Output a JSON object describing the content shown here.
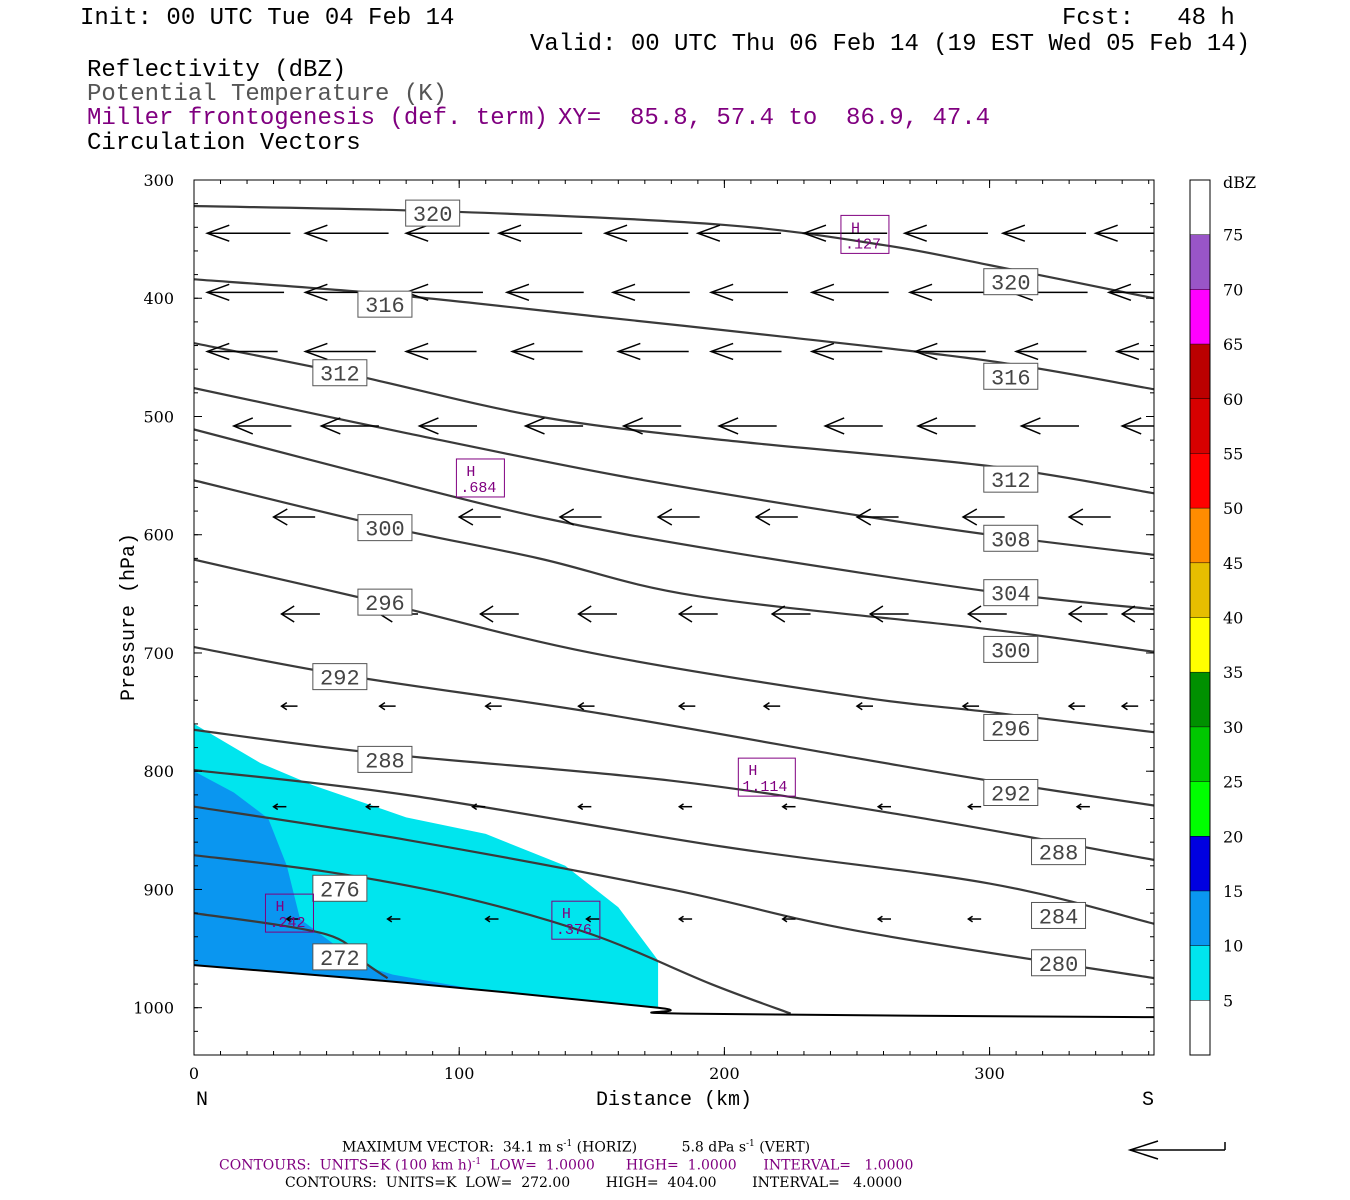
{
  "header": {
    "init": "Init: 00 UTC Tue 04 Feb 14",
    "fcst": "Fcst:   48 h",
    "valid": "Valid: 00 UTC Thu 06 Feb 14 (19 EST Wed 05 Feb 14)",
    "fields": [
      "Reflectivity (dBZ)",
      "Potential Temperature (K)",
      "Miller frontogenesis (def. term)",
      "Circulation Vectors"
    ],
    "xy": "XY=  85.8, 57.4 to  86.9, 47.4"
  },
  "colors": {
    "purple": "#800080",
    "contour": "#3a3a3a",
    "refl_5": "#00e5ee",
    "refl_10": "#0a96f0"
  },
  "chart_data": {
    "type": "cross-section",
    "xlabel": "Distance (km)",
    "ylabel": "Pressure (hPa)",
    "xlim": [
      0,
      362
    ],
    "ylim": [
      1040,
      300
    ],
    "xticks": [
      "0",
      "100",
      "200",
      "300"
    ],
    "yticks": [
      "300",
      "400",
      "500",
      "600",
      "700",
      "800",
      "900",
      "1000"
    ],
    "left_label": "N",
    "right_label": "S",
    "theta_contours": [
      {
        "label": "320",
        "pts": [
          [
            0,
            322
          ],
          [
            100,
            327
          ],
          [
            200,
            338
          ],
          [
            260,
            355
          ],
          [
            300,
            372
          ],
          [
            362,
            400
          ]
        ],
        "labels_at": [
          [
            90,
            328
          ],
          [
            308,
            386
          ]
        ]
      },
      {
        "label": "316",
        "pts": [
          [
            0,
            384
          ],
          [
            70,
            396
          ],
          [
            150,
            415
          ],
          [
            220,
            432
          ],
          [
            300,
            453
          ],
          [
            362,
            477
          ]
        ],
        "labels_at": [
          [
            72,
            405
          ],
          [
            308,
            466
          ]
        ]
      },
      {
        "label": "312",
        "pts": [
          [
            0,
            438
          ],
          [
            60,
            465
          ],
          [
            130,
            500
          ],
          [
            200,
            520
          ],
          [
            300,
            542
          ],
          [
            362,
            565
          ]
        ],
        "labels_at": [
          [
            55,
            463
          ],
          [
            308,
            553
          ]
        ]
      },
      {
        "label": "308",
        "pts": [
          [
            0,
            476
          ],
          [
            80,
            514
          ],
          [
            160,
            550
          ],
          [
            240,
            580
          ],
          [
            300,
            600
          ],
          [
            362,
            617
          ]
        ],
        "labels_at": [
          [
            308,
            603
          ]
        ]
      },
      {
        "label": "304",
        "pts": [
          [
            0,
            511
          ],
          [
            60,
            546
          ],
          [
            130,
            585
          ],
          [
            200,
            614
          ],
          [
            300,
            648
          ],
          [
            362,
            663
          ]
        ],
        "labels_at": [
          [
            308,
            649
          ]
        ]
      },
      {
        "label": "300",
        "pts": [
          [
            0,
            554
          ],
          [
            70,
            592
          ],
          [
            130,
            620
          ],
          [
            190,
            652
          ],
          [
            300,
            680
          ],
          [
            362,
            699
          ]
        ],
        "labels_at": [
          [
            72,
            594
          ],
          [
            308,
            697
          ]
        ]
      },
      {
        "label": "296",
        "pts": [
          [
            0,
            621
          ],
          [
            70,
            657
          ],
          [
            150,
            700
          ],
          [
            250,
            737
          ],
          [
            300,
            750
          ],
          [
            362,
            767
          ]
        ],
        "labels_at": [
          [
            72,
            657
          ],
          [
            308,
            763
          ]
        ]
      },
      {
        "label": "292",
        "pts": [
          [
            0,
            695
          ],
          [
            60,
            720
          ],
          [
            150,
            750
          ],
          [
            250,
            789
          ],
          [
            300,
            808
          ],
          [
            362,
            829
          ]
        ],
        "labels_at": [
          [
            55,
            720
          ],
          [
            308,
            818
          ]
        ]
      },
      {
        "label": "288",
        "pts": [
          [
            0,
            765
          ],
          [
            70,
            785
          ],
          [
            180,
            808
          ],
          [
            270,
            838
          ],
          [
            362,
            875
          ]
        ],
        "labels_at": [
          [
            72,
            790
          ],
          [
            326,
            868
          ]
        ]
      },
      {
        "label": "284",
        "pts": [
          [
            0,
            799
          ],
          [
            80,
            820
          ],
          [
            200,
            864
          ],
          [
            300,
            895
          ],
          [
            362,
            929
          ]
        ],
        "labels_at": [
          [
            326,
            922
          ]
        ]
      },
      {
        "label": "280",
        "pts": [
          [
            0,
            830
          ],
          [
            80,
            858
          ],
          [
            180,
            900
          ],
          [
            250,
            935
          ],
          [
            362,
            975
          ]
        ],
        "labels_at": [
          [
            326,
            962
          ]
        ]
      },
      {
        "label": "276",
        "pts": [
          [
            0,
            871
          ],
          [
            50,
            885
          ],
          [
            100,
            906
          ],
          [
            150,
            938
          ],
          [
            195,
            980
          ],
          [
            225,
            1005
          ]
        ],
        "labels_at": [
          [
            55,
            899
          ]
        ]
      },
      {
        "label": "272",
        "pts": [
          [
            0,
            920
          ],
          [
            50,
            938
          ],
          [
            65,
            963
          ],
          [
            73,
            975
          ]
        ],
        "labels_at": [
          [
            55,
            957
          ]
        ]
      }
    ],
    "terrain": [
      [
        0,
        964
      ],
      [
        80,
        979
      ],
      [
        175,
        1000
      ],
      [
        185,
        1005
      ],
      [
        362,
        1008
      ]
    ],
    "reflectivity": [
      {
        "level": "5",
        "color": "#00e5ee",
        "polygon": [
          [
            0,
            760
          ],
          [
            25,
            793
          ],
          [
            45,
            812
          ],
          [
            80,
            839
          ],
          [
            110,
            853
          ],
          [
            140,
            880
          ],
          [
            160,
            915
          ],
          [
            175,
            960
          ],
          [
            175,
            1000
          ],
          [
            80,
            979
          ],
          [
            0,
            964
          ]
        ]
      },
      {
        "level": "10",
        "color": "#0a96f0",
        "polygon": [
          [
            0,
            800
          ],
          [
            15,
            818
          ],
          [
            28,
            840
          ],
          [
            35,
            880
          ],
          [
            40,
            925
          ],
          [
            55,
            950
          ],
          [
            60,
            962
          ],
          [
            75,
            972
          ],
          [
            105,
            984
          ],
          [
            80,
            979
          ],
          [
            0,
            964
          ]
        ]
      }
    ],
    "frontogenesis_highs": [
      {
        "label": "H",
        "value": ".127",
        "x": 253,
        "y": 346
      },
      {
        "label": "H",
        "value": ".684",
        "x": 108,
        "y": 552
      },
      {
        "label": "H",
        "value": "1.114",
        "x": 216,
        "y": 805
      },
      {
        "label": "H",
        "value": ".376",
        "x": 144,
        "y": 926
      },
      {
        "label": "H",
        "value": ".242",
        "x": 36,
        "y": 920
      }
    ],
    "vectors": [
      {
        "p": 345,
        "x": [
          5,
          42,
          80,
          115,
          155,
          190,
          230,
          268,
          305,
          340
        ],
        "len": 26
      },
      {
        "p": 395,
        "x": [
          5,
          42,
          80,
          118,
          158,
          195,
          233,
          270,
          308,
          345
        ],
        "len": 24
      },
      {
        "p": 445,
        "x": [
          5,
          42,
          80,
          120,
          160,
          195,
          233,
          272,
          310,
          348
        ],
        "len": 22
      },
      {
        "p": 508,
        "x": [
          15,
          48,
          85,
          125,
          162,
          198,
          238,
          273,
          312,
          350
        ],
        "len": 18
      },
      {
        "p": 585,
        "x": [
          30,
          100,
          138,
          175,
          212,
          250,
          290,
          330
        ],
        "len": 13
      },
      {
        "p": 667,
        "x": [
          33,
          70,
          108,
          145,
          183,
          218,
          255,
          292,
          330,
          350
        ],
        "len": 12
      },
      {
        "p": 745,
        "x": [
          33,
          70,
          110,
          145,
          183,
          215,
          250,
          290,
          330,
          350
        ],
        "len": 5
      },
      {
        "p": 830,
        "x": [
          30,
          65,
          105,
          145,
          183,
          222,
          258,
          292,
          333
        ],
        "len": 4
      },
      {
        "p": 925,
        "x": [
          35,
          73,
          110,
          148,
          183,
          222,
          258,
          292,
          330
        ],
        "len": 4
      }
    ],
    "colorbar": {
      "title": "dBZ",
      "levels": [
        "5",
        "10",
        "15",
        "20",
        "25",
        "30",
        "35",
        "40",
        "45",
        "50",
        "55",
        "60",
        "65",
        "70",
        "75"
      ],
      "colors": [
        "#ffffff",
        "#00e5ee",
        "#0a96f0",
        "#0000e0",
        "#00ff00",
        "#00c800",
        "#009000",
        "#ffff00",
        "#e6be00",
        "#ff8c00",
        "#ff0000",
        "#d70000",
        "#bb0000",
        "#ff00ff",
        "#9955c8",
        "#ffffff"
      ]
    }
  },
  "footer": {
    "line1a": "MAXIMUM VECTOR:  34.1 m s",
    "line1b": " (HORIZ)          5.8 dPa s",
    "line1c": " (VERT)",
    "sup": "-1",
    "line2a": "CONTOURS:  UNITS=K (100 km h)",
    "line2b": "  LOW=  1.0000       HIGH=  1.0000      INTERVAL=   1.0000",
    "line3": "CONTOURS:  UNITS=K  LOW=  272.00        HIGH=  404.00        INTERVAL=   4.0000"
  }
}
